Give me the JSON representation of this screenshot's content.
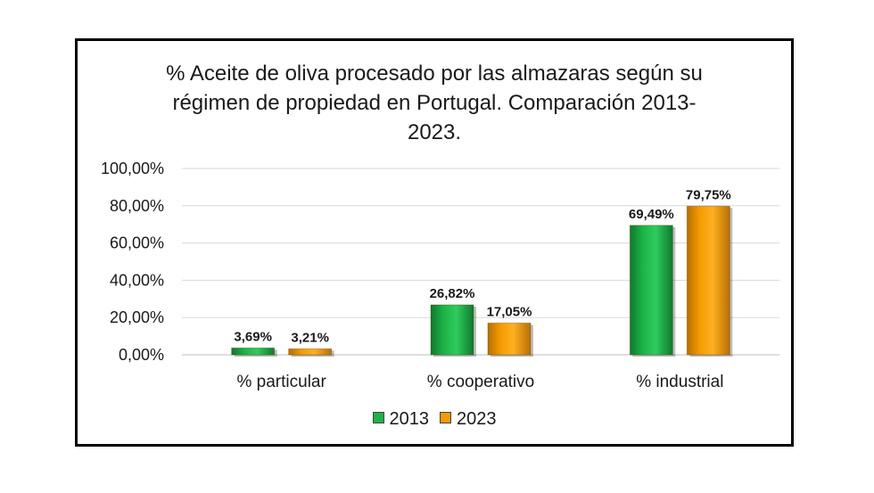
{
  "chart_data": {
    "type": "bar",
    "title_lines": [
      "% Aceite de oliva procesado por las almazaras según su",
      "régimen de propiedad en Portugal. Comparación 2013-",
      "2023."
    ],
    "categories": [
      "% particular",
      "% cooperativo",
      "% industrial"
    ],
    "series": [
      {
        "name": "2013",
        "color": "#1db348",
        "values": [
          3.69,
          26.82,
          69.49
        ],
        "labels": [
          "3,69%",
          "26,82%",
          "69,49%"
        ]
      },
      {
        "name": "2023",
        "color": "#f59b00",
        "values": [
          3.21,
          17.05,
          79.75
        ],
        "labels": [
          "3,21%",
          "17,05%",
          "79,75%"
        ]
      }
    ],
    "ylim": [
      0,
      100
    ],
    "yticks": [
      0,
      20,
      40,
      60,
      80,
      100
    ],
    "ytick_labels": [
      "0,00%",
      "20,00%",
      "40,00%",
      "60,00%",
      "80,00%",
      "100,00%"
    ],
    "grid": true,
    "legend": "bottom"
  }
}
